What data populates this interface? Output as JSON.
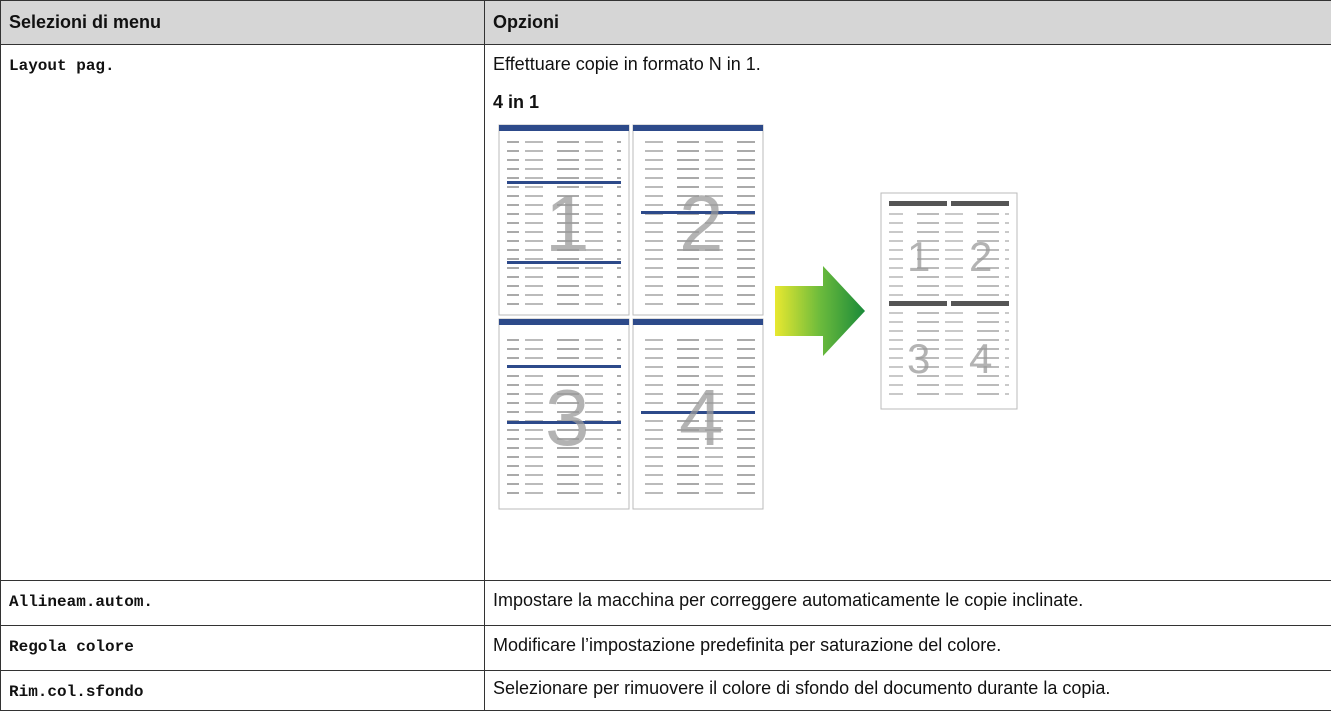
{
  "table": {
    "header": [
      "Selezioni di menu",
      "Opzioni"
    ],
    "rows": [
      {
        "menu": "Layout pag.",
        "description": "Effettuare copie in formato N in 1.",
        "example_title": "4 in 1",
        "illustration_labels": [
          "1",
          "2",
          "3",
          "4"
        ]
      },
      {
        "menu": "Allineam.autom.",
        "description": "Impostare la macchina per correggere automaticamente le copie inclinate."
      },
      {
        "menu": "Regola colore",
        "description": "Modificare l’impostazione predefinita per saturazione del colore."
      },
      {
        "menu": "Rim.col.sfondo",
        "description": "Selezionare per rimuovere il colore di sfondo del documento durante la copia."
      }
    ]
  }
}
